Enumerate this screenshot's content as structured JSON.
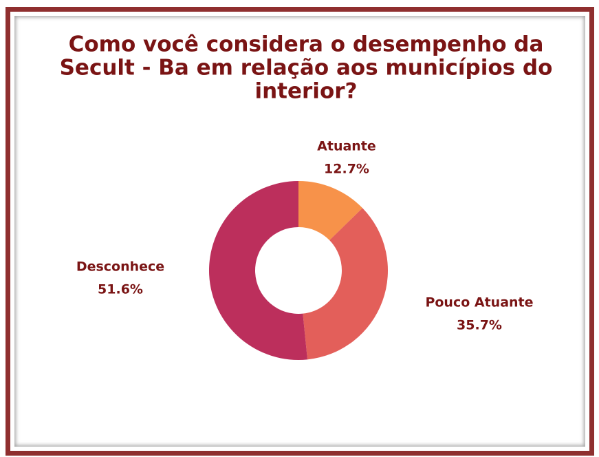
{
  "chart_data": {
    "type": "donut",
    "title": [
      "Como você considera o desempenho da",
      "Secult - Ba em relação aos municípios do",
      "interior?"
    ],
    "categories": [
      "Atuante",
      "Pouco Atuante",
      "Desconhece"
    ],
    "values": [
      12.7,
      35.7,
      51.6
    ],
    "value_labels": [
      "12.7%",
      "35.7%",
      "51.6%"
    ],
    "colors": [
      "#f7924a",
      "#e35f5a",
      "#bc2f5c"
    ]
  }
}
